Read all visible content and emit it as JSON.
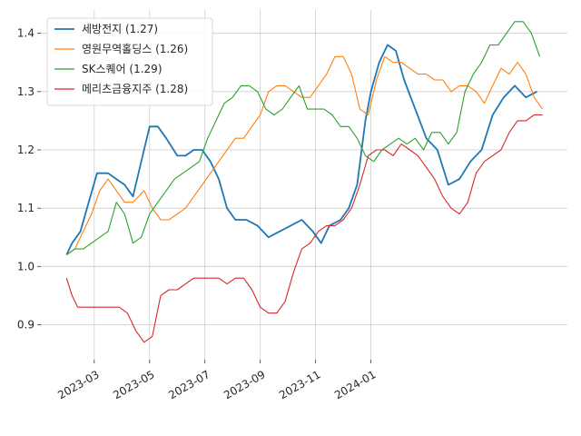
{
  "chart_data": {
    "type": "line",
    "x_labels": [
      "2023-03",
      "2023-05",
      "2023-07",
      "2023-09",
      "2023-11",
      "2024-01"
    ],
    "y_ticks": [
      0.9,
      1.0,
      1.1,
      1.2,
      1.3,
      1.4
    ],
    "ylim": [
      0.84,
      1.44
    ],
    "x_domain_months": [
      "2023-02",
      "2024-01"
    ],
    "grid": true,
    "legend_position": "top-left",
    "colors": {
      "seban": "#1f77b4",
      "young": "#ff7f0e",
      "sk": "#2ca02c",
      "meritz": "#d62728",
      "grid": "#cccccc"
    },
    "series": [
      {
        "key": "seban",
        "name": "세방전지 (1.27)",
        "color": "#1f77b4",
        "points": [
          [
            0.0,
            1.02
          ],
          [
            0.2,
            1.04
          ],
          [
            0.5,
            1.06
          ],
          [
            0.8,
            1.11
          ],
          [
            1.1,
            1.16
          ],
          [
            1.3,
            1.16
          ],
          [
            1.5,
            1.16
          ],
          [
            1.8,
            1.15
          ],
          [
            2.1,
            1.14
          ],
          [
            2.4,
            1.12
          ],
          [
            2.7,
            1.18
          ],
          [
            3.0,
            1.24
          ],
          [
            3.3,
            1.24
          ],
          [
            3.6,
            1.22
          ],
          [
            4.0,
            1.19
          ],
          [
            4.3,
            1.19
          ],
          [
            4.6,
            1.2
          ],
          [
            4.9,
            1.2
          ],
          [
            5.2,
            1.18
          ],
          [
            5.5,
            1.15
          ],
          [
            5.8,
            1.1
          ],
          [
            6.1,
            1.08
          ],
          [
            6.5,
            1.08
          ],
          [
            6.9,
            1.07
          ],
          [
            7.3,
            1.05
          ],
          [
            7.7,
            1.06
          ],
          [
            8.1,
            1.07
          ],
          [
            8.5,
            1.08
          ],
          [
            8.9,
            1.06
          ],
          [
            9.2,
            1.04
          ],
          [
            9.5,
            1.07
          ],
          [
            9.9,
            1.08
          ],
          [
            10.2,
            1.1
          ],
          [
            10.5,
            1.14
          ],
          [
            10.8,
            1.25
          ],
          [
            11.0,
            1.3
          ],
          [
            11.3,
            1.35
          ],
          [
            11.6,
            1.38
          ],
          [
            11.9,
            1.37
          ],
          [
            12.2,
            1.32
          ],
          [
            12.6,
            1.27
          ],
          [
            13.0,
            1.22
          ],
          [
            13.4,
            1.2
          ],
          [
            13.8,
            1.14
          ],
          [
            14.2,
            1.15
          ],
          [
            14.6,
            1.18
          ],
          [
            15.0,
            1.2
          ],
          [
            15.4,
            1.26
          ],
          [
            15.8,
            1.29
          ],
          [
            16.2,
            1.31
          ],
          [
            16.6,
            1.29
          ],
          [
            17.0,
            1.3
          ]
        ]
      },
      {
        "key": "young",
        "name": "영원무역홀딩스 (1.26)",
        "color": "#ff7f0e",
        "points": [
          [
            0.0,
            1.02
          ],
          [
            0.3,
            1.03
          ],
          [
            0.6,
            1.06
          ],
          [
            0.9,
            1.09
          ],
          [
            1.2,
            1.13
          ],
          [
            1.5,
            1.15
          ],
          [
            1.8,
            1.13
          ],
          [
            2.1,
            1.11
          ],
          [
            2.4,
            1.11
          ],
          [
            2.8,
            1.13
          ],
          [
            3.1,
            1.1
          ],
          [
            3.4,
            1.08
          ],
          [
            3.7,
            1.08
          ],
          [
            4.0,
            1.09
          ],
          [
            4.3,
            1.1
          ],
          [
            4.6,
            1.12
          ],
          [
            4.9,
            1.14
          ],
          [
            5.2,
            1.16
          ],
          [
            5.5,
            1.18
          ],
          [
            5.8,
            1.2
          ],
          [
            6.1,
            1.22
          ],
          [
            6.4,
            1.22
          ],
          [
            6.7,
            1.24
          ],
          [
            7.0,
            1.26
          ],
          [
            7.3,
            1.3
          ],
          [
            7.6,
            1.31
          ],
          [
            7.9,
            1.31
          ],
          [
            8.2,
            1.3
          ],
          [
            8.5,
            1.29
          ],
          [
            8.8,
            1.29
          ],
          [
            9.1,
            1.31
          ],
          [
            9.4,
            1.33
          ],
          [
            9.7,
            1.36
          ],
          [
            10.0,
            1.36
          ],
          [
            10.3,
            1.33
          ],
          [
            10.6,
            1.27
          ],
          [
            10.9,
            1.26
          ],
          [
            11.2,
            1.32
          ],
          [
            11.5,
            1.36
          ],
          [
            11.8,
            1.35
          ],
          [
            12.1,
            1.35
          ],
          [
            12.4,
            1.34
          ],
          [
            12.7,
            1.33
          ],
          [
            13.0,
            1.33
          ],
          [
            13.3,
            1.32
          ],
          [
            13.6,
            1.32
          ],
          [
            13.9,
            1.3
          ],
          [
            14.2,
            1.31
          ],
          [
            14.5,
            1.31
          ],
          [
            14.8,
            1.3
          ],
          [
            15.1,
            1.28
          ],
          [
            15.4,
            1.31
          ],
          [
            15.7,
            1.34
          ],
          [
            16.0,
            1.33
          ],
          [
            16.3,
            1.35
          ],
          [
            16.6,
            1.33
          ],
          [
            16.9,
            1.29
          ],
          [
            17.2,
            1.27
          ]
        ]
      },
      {
        "key": "sk",
        "name": "SK스퀘어 (1.29)",
        "color": "#2ca02c",
        "points": [
          [
            0.0,
            1.02
          ],
          [
            0.3,
            1.03
          ],
          [
            0.6,
            1.03
          ],
          [
            0.9,
            1.04
          ],
          [
            1.2,
            1.05
          ],
          [
            1.5,
            1.06
          ],
          [
            1.8,
            1.11
          ],
          [
            2.1,
            1.09
          ],
          [
            2.4,
            1.04
          ],
          [
            2.7,
            1.05
          ],
          [
            3.0,
            1.09
          ],
          [
            3.3,
            1.11
          ],
          [
            3.6,
            1.13
          ],
          [
            3.9,
            1.15
          ],
          [
            4.2,
            1.16
          ],
          [
            4.5,
            1.17
          ],
          [
            4.8,
            1.18
          ],
          [
            5.1,
            1.22
          ],
          [
            5.4,
            1.25
          ],
          [
            5.7,
            1.28
          ],
          [
            6.0,
            1.29
          ],
          [
            6.3,
            1.31
          ],
          [
            6.6,
            1.31
          ],
          [
            6.9,
            1.3
          ],
          [
            7.2,
            1.27
          ],
          [
            7.5,
            1.26
          ],
          [
            7.8,
            1.27
          ],
          [
            8.1,
            1.29
          ],
          [
            8.4,
            1.31
          ],
          [
            8.7,
            1.27
          ],
          [
            9.0,
            1.27
          ],
          [
            9.3,
            1.27
          ],
          [
            9.6,
            1.26
          ],
          [
            9.9,
            1.24
          ],
          [
            10.2,
            1.24
          ],
          [
            10.5,
            1.22
          ],
          [
            10.8,
            1.19
          ],
          [
            11.1,
            1.18
          ],
          [
            11.4,
            1.2
          ],
          [
            11.7,
            1.21
          ],
          [
            12.0,
            1.22
          ],
          [
            12.3,
            1.21
          ],
          [
            12.6,
            1.22
          ],
          [
            12.9,
            1.2
          ],
          [
            13.2,
            1.23
          ],
          [
            13.5,
            1.23
          ],
          [
            13.8,
            1.21
          ],
          [
            14.1,
            1.23
          ],
          [
            14.4,
            1.3
          ],
          [
            14.7,
            1.33
          ],
          [
            15.0,
            1.35
          ],
          [
            15.3,
            1.38
          ],
          [
            15.6,
            1.38
          ],
          [
            15.9,
            1.4
          ],
          [
            16.2,
            1.42
          ],
          [
            16.5,
            1.42
          ],
          [
            16.8,
            1.4
          ],
          [
            17.1,
            1.36
          ]
        ]
      },
      {
        "key": "meritz",
        "name": "메리츠금융지주 (1.28)",
        "color": "#d62728",
        "points": [
          [
            0.0,
            0.98
          ],
          [
            0.2,
            0.95
          ],
          [
            0.4,
            0.93
          ],
          [
            0.7,
            0.93
          ],
          [
            1.0,
            0.93
          ],
          [
            1.3,
            0.93
          ],
          [
            1.6,
            0.93
          ],
          [
            1.9,
            0.93
          ],
          [
            2.2,
            0.92
          ],
          [
            2.5,
            0.89
          ],
          [
            2.8,
            0.87
          ],
          [
            3.1,
            0.88
          ],
          [
            3.4,
            0.95
          ],
          [
            3.7,
            0.96
          ],
          [
            4.0,
            0.96
          ],
          [
            4.3,
            0.97
          ],
          [
            4.6,
            0.98
          ],
          [
            4.9,
            0.98
          ],
          [
            5.2,
            0.98
          ],
          [
            5.5,
            0.98
          ],
          [
            5.8,
            0.97
          ],
          [
            6.1,
            0.98
          ],
          [
            6.4,
            0.98
          ],
          [
            6.7,
            0.96
          ],
          [
            7.0,
            0.93
          ],
          [
            7.3,
            0.92
          ],
          [
            7.6,
            0.92
          ],
          [
            7.9,
            0.94
          ],
          [
            8.2,
            0.99
          ],
          [
            8.5,
            1.03
          ],
          [
            8.8,
            1.04
          ],
          [
            9.1,
            1.06
          ],
          [
            9.4,
            1.07
          ],
          [
            9.7,
            1.07
          ],
          [
            10.0,
            1.08
          ],
          [
            10.3,
            1.1
          ],
          [
            10.6,
            1.14
          ],
          [
            10.9,
            1.19
          ],
          [
            11.2,
            1.2
          ],
          [
            11.5,
            1.2
          ],
          [
            11.8,
            1.19
          ],
          [
            12.1,
            1.21
          ],
          [
            12.4,
            1.2
          ],
          [
            12.7,
            1.19
          ],
          [
            13.0,
            1.17
          ],
          [
            13.3,
            1.15
          ],
          [
            13.6,
            1.12
          ],
          [
            13.9,
            1.1
          ],
          [
            14.2,
            1.09
          ],
          [
            14.5,
            1.11
          ],
          [
            14.8,
            1.16
          ],
          [
            15.1,
            1.18
          ],
          [
            15.4,
            1.19
          ],
          [
            15.7,
            1.2
          ],
          [
            16.0,
            1.23
          ],
          [
            16.3,
            1.25
          ],
          [
            16.6,
            1.25
          ],
          [
            16.9,
            1.26
          ],
          [
            17.2,
            1.26
          ]
        ]
      }
    ]
  }
}
